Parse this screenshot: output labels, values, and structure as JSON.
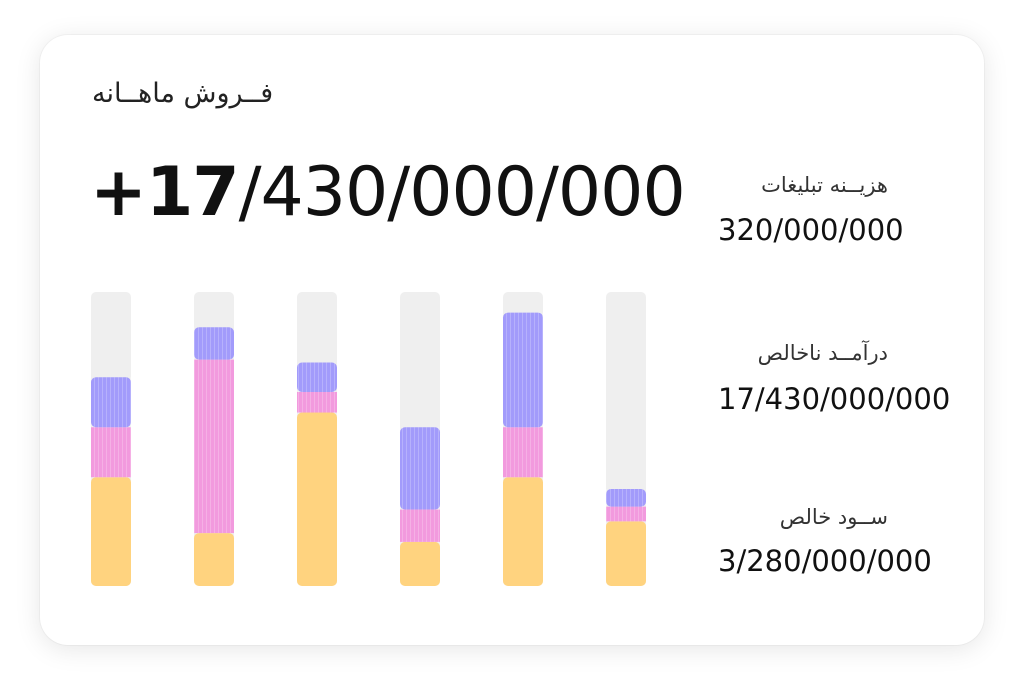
{
  "card": {
    "title": "فــروش ماهــانه",
    "total_prefix": "+17",
    "total_rest": "/430/000/000"
  },
  "stats": [
    {
      "label": "هزیــنه تبلیغات",
      "value": "320/000/000"
    },
    {
      "label": "درآمــد ناخالص",
      "value": "17/430/000/000"
    },
    {
      "label": "ســود خالص",
      "value": "3/280/000/000"
    }
  ],
  "colors": {
    "track": "#efefef",
    "purple": "#a29bfb",
    "pink": "#f29ade",
    "yellow": "#ffd37f"
  },
  "chart_data": {
    "type": "bar",
    "stacked": true,
    "ylim": [
      0,
      100
    ],
    "series": [
      {
        "values": [
          37,
          18,
          59,
          15,
          37,
          22
        ],
        "color": "#ffd37f"
      },
      {
        "values": [
          17,
          59,
          7,
          11,
          17,
          5
        ],
        "color": "#f29ade"
      },
      {
        "values": [
          17,
          11,
          10,
          28,
          39,
          6
        ],
        "color": "#a29bfb"
      }
    ]
  }
}
